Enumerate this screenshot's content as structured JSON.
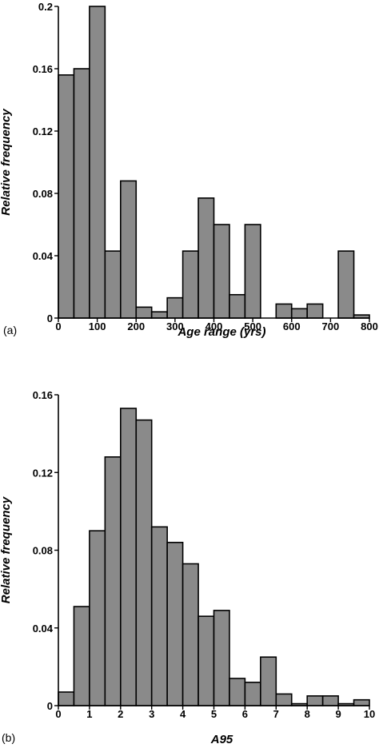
{
  "chart_data": [
    {
      "type": "bar",
      "panel_label": "(a)",
      "xlabel": "Age range (yrs)",
      "ylabel": "Relative frequency",
      "xlim": [
        0,
        800
      ],
      "ylim": [
        0,
        0.2
      ],
      "bin_width": 40,
      "bin_starts": [
        0,
        40,
        80,
        120,
        160,
        200,
        240,
        280,
        320,
        360,
        400,
        440,
        480,
        520,
        560,
        600,
        640,
        680,
        720,
        760
      ],
      "values": [
        0.156,
        0.16,
        0.2,
        0.043,
        0.088,
        0.007,
        0.004,
        0.013,
        0.043,
        0.077,
        0.06,
        0.015,
        0.06,
        0.0,
        0.009,
        0.006,
        0.009,
        0.0,
        0.043,
        0.002
      ],
      "x_ticks": [
        "0",
        "100",
        "200",
        "300",
        "400",
        "500",
        "600",
        "700",
        "800"
      ],
      "y_ticks": [
        "0",
        "0.04",
        "0.08",
        "0.12",
        "0.16",
        "0.2"
      ],
      "grid": false
    },
    {
      "type": "bar",
      "panel_label": "(b)",
      "xlabel": "A95",
      "ylabel": "Relative frequency",
      "xlim": [
        0,
        10
      ],
      "ylim": [
        0,
        0.16
      ],
      "bin_width": 0.5,
      "bin_starts": [
        0,
        0.5,
        1,
        1.5,
        2,
        2.5,
        3,
        3.5,
        4,
        4.5,
        5,
        5.5,
        6,
        6.5,
        7,
        7.5,
        8,
        8.5,
        9,
        9.5
      ],
      "values": [
        0.007,
        0.051,
        0.09,
        0.128,
        0.153,
        0.147,
        0.092,
        0.084,
        0.073,
        0.046,
        0.049,
        0.014,
        0.012,
        0.025,
        0.006,
        0.001,
        0.005,
        0.005,
        0.001,
        0.003
      ],
      "x_ticks": [
        "0",
        "1",
        "2",
        "3",
        "4",
        "5",
        "6",
        "7",
        "8",
        "9",
        "10"
      ],
      "y_ticks": [
        "0",
        "0.04",
        "0.08",
        "0.12",
        "0.16"
      ],
      "grid": false
    }
  ]
}
